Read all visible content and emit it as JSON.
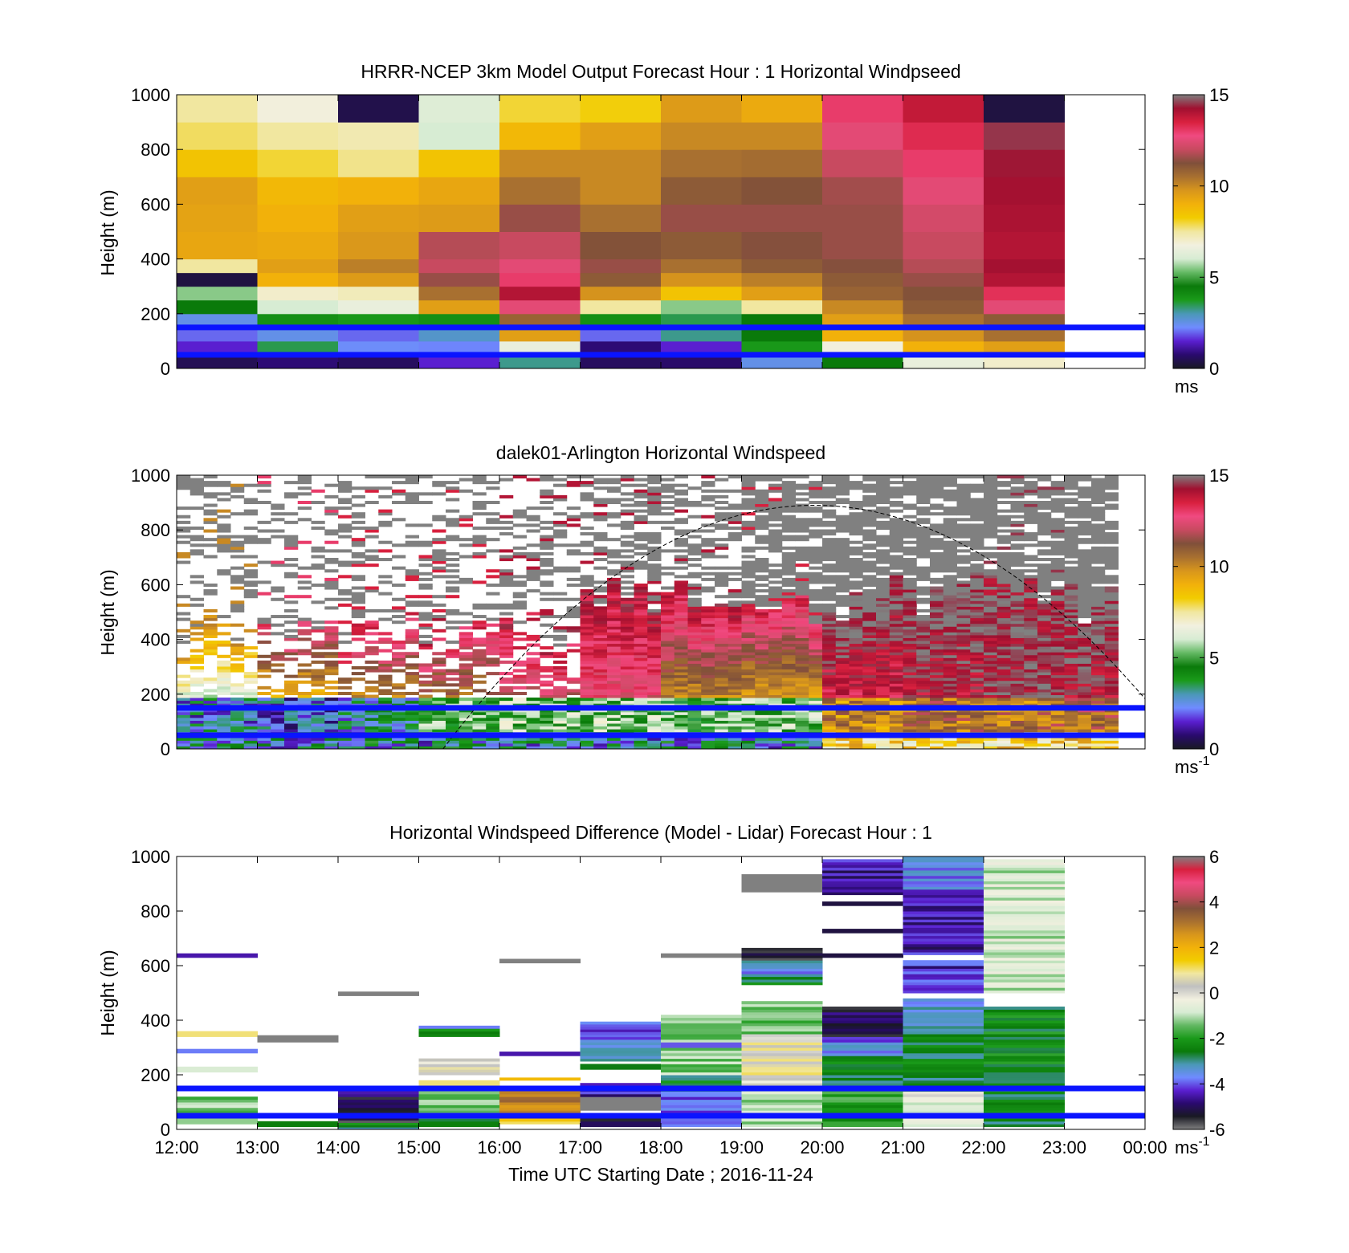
{
  "colors": {
    "wind_stops": [
      "#191923",
      "#2a0a6e",
      "#5a1fd0",
      "#6f8cff",
      "#4a98b6",
      "#1a9a1a",
      "#0a7a0a",
      "#62b862",
      "#d7ecd3",
      "#f2f0e0",
      "#f1e7a0",
      "#f2cc00",
      "#f2b10a",
      "#d8961c",
      "#a87030",
      "#80503a",
      "#c84a60",
      "#f04a80",
      "#d8203e",
      "#a01030",
      "#808080"
    ],
    "diff_stops": [
      "#808080",
      "#191923",
      "#2a0a6e",
      "#5a1fd0",
      "#6f8cff",
      "#4a98b6",
      "#0a7a0a",
      "#1a9a1a",
      "#62b862",
      "#d7ecd3",
      "#f2f0e0",
      "#c0c0c0",
      "#f1e7a0",
      "#f2cc00",
      "#f2b10a",
      "#d8961c",
      "#a87030",
      "#80503a",
      "#c84a60",
      "#f04a80",
      "#d8203e",
      "#808080"
    ],
    "reference_line": "#0a14ff"
  },
  "chart_data": [
    {
      "type": "heatmap",
      "title": "HRRR-NCEP 3km Model Output   Forecast Hour : 1 Horizontal Windpseed",
      "ylabel": "Height (m)",
      "y_ticks": [
        "0",
        "200",
        "400",
        "600",
        "800",
        "1000"
      ],
      "ylim": [
        0,
        1000
      ],
      "x_ticks_hours": [
        12,
        13,
        14,
        15,
        16,
        17,
        18,
        19,
        20,
        21,
        22,
        23,
        24
      ],
      "xlim_hours": [
        12,
        24
      ],
      "colorbar": {
        "ticks": [
          "0",
          "5",
          "10",
          "15"
        ],
        "range": [
          0,
          15
        ],
        "unit": "ms"
      },
      "reference_lines_m": [
        50,
        150
      ],
      "heights_m": [
        0,
        50,
        100,
        150,
        200,
        250,
        300,
        350,
        400,
        500,
        600,
        700,
        800,
        900,
        1000
      ],
      "columns": [
        {
          "hour": 12,
          "values": [
            0.5,
            1.5,
            2.0,
            2.5,
            4.5,
            5.5,
            0.3,
            7.5,
            9.3,
            9.4,
            9.5,
            8.5,
            7.8,
            7.5
          ]
        },
        {
          "hour": 13,
          "values": [
            0.8,
            3.5,
            2.5,
            4.0,
            6.0,
            7.0,
            9.0,
            9.5,
            9.2,
            9.0,
            8.8,
            8.0,
            7.5,
            6.8
          ]
        },
        {
          "hour": 14,
          "values": [
            0.6,
            2.3,
            2.0,
            3.8,
            6.5,
            7.2,
            9.6,
            10.2,
            9.7,
            9.5,
            9.0,
            7.6,
            7.3,
            0.4
          ]
        },
        {
          "hour": 15,
          "values": [
            1.5,
            2.2,
            2.8,
            4.0,
            9.5,
            10.5,
            11.5,
            12.0,
            11.8,
            9.6,
            9.3,
            8.5,
            6.0,
            6.2
          ]
        },
        {
          "hour": 16,
          "values": [
            3.2,
            6.5,
            9.5,
            10.8,
            12.5,
            14.0,
            13.0,
            12.5,
            12.0,
            11.5,
            10.5,
            10.0,
            8.8,
            8.0
          ]
        },
        {
          "hour": 17,
          "values": [
            0.6,
            0.8,
            2.0,
            4.0,
            7.5,
            9.8,
            11.0,
            11.5,
            11.2,
            10.5,
            10.0,
            10.0,
            9.5,
            8.2
          ]
        },
        {
          "hour": 18,
          "values": [
            0.7,
            1.5,
            3.2,
            3.5,
            5.5,
            8.5,
            9.8,
            10.5,
            11.0,
            11.5,
            11.0,
            10.5,
            10.0,
            9.6
          ]
        },
        {
          "hour": 19,
          "values": [
            2.5,
            3.8,
            4.5,
            4.5,
            7.5,
            9.5,
            10.2,
            11.0,
            11.3,
            11.5,
            11.2,
            10.6,
            10.0,
            9.2
          ]
        },
        {
          "hour": 20,
          "values": [
            4.5,
            6.8,
            9.0,
            9.5,
            10.0,
            10.8,
            11.0,
            11.3,
            11.5,
            11.5,
            11.6,
            12.0,
            12.5,
            13.0
          ]
        },
        {
          "hour": 21,
          "values": [
            6.5,
            9.0,
            9.8,
            10.5,
            11.0,
            11.2,
            11.5,
            11.8,
            12.0,
            12.2,
            12.5,
            13.0,
            13.3,
            13.8
          ]
        },
        {
          "hour": 22,
          "values": [
            7.0,
            9.5,
            10.5,
            11.0,
            12.5,
            13.2,
            14.0,
            14.2,
            14.0,
            14.1,
            14.2,
            14.3,
            14.5,
            0.3
          ]
        }
      ]
    },
    {
      "type": "heatmap",
      "title": "dalek01-Arlington  Horizontal Windspeed",
      "ylabel": "Height (m)",
      "y_ticks": [
        "0",
        "200",
        "400",
        "600",
        "800",
        "1000"
      ],
      "ylim": [
        0,
        1000
      ],
      "xlim_hours": [
        12,
        24
      ],
      "colorbar": {
        "ticks": [
          "0",
          "5",
          "10",
          "15"
        ],
        "range": [
          0,
          15
        ],
        "unit": "ms",
        "unit_exponent": "-1"
      },
      "reference_lines_m": [
        50,
        150
      ],
      "solar_curve": {
        "style": "dashed",
        "start_hour": 15.3,
        "end_hour": 24,
        "peak_hour": 19.9,
        "peak_height_m": 890
      },
      "profiles_by_hour": [
        {
          "hour": 12,
          "low_level": 2.5,
          "mid_level": 6.0,
          "upper_level": 10.0,
          "sparse": true
        },
        {
          "hour": 13,
          "low_level": 2.0,
          "mid_level": 9.0,
          "upper_level": 13.0,
          "sparse": true
        },
        {
          "hour": 14,
          "low_level": 3.0,
          "mid_level": 10.0,
          "upper_level": 13.5,
          "sparse": true
        },
        {
          "hour": 15,
          "low_level": 5.0,
          "mid_level": 10.5,
          "upper_level": 13.5,
          "sparse": true
        },
        {
          "hour": 16,
          "low_level": 5.5,
          "mid_level": 12.0,
          "upper_level": 14.0,
          "sparse": true
        },
        {
          "hour": 17,
          "low_level": 5.5,
          "mid_level": 12.5,
          "upper_level": 14.0,
          "sparse": false
        },
        {
          "hour": 18,
          "low_level": 5.0,
          "mid_level": 10.0,
          "upper_level": 14.0,
          "sparse": false
        },
        {
          "hour": 19,
          "low_level": 5.5,
          "mid_level": 9.5,
          "upper_level": 13.5,
          "sparse": false
        },
        {
          "hour": 20,
          "low_level": 10.0,
          "mid_level": 13.5,
          "upper_level": 15.0,
          "sparse": false
        },
        {
          "hour": 21,
          "low_level": 10.5,
          "mid_level": 14.0,
          "upper_level": 15.0,
          "sparse": false
        },
        {
          "hour": 22,
          "low_level": 10.5,
          "mid_level": 14.5,
          "upper_level": 14.5,
          "sparse": false
        },
        {
          "hour": 23,
          "low_level": 11.0,
          "mid_level": 14.0,
          "upper_level": 15.0,
          "sparse": false
        }
      ]
    },
    {
      "type": "heatmap",
      "title": "Horizontal Windspeed Difference (Model - Lidar) Forecast Hour : 1",
      "ylabel": "Height (m)",
      "xlabel": "Time UTC  Starting Date ; 2016-11-24",
      "y_ticks": [
        "0",
        "200",
        "400",
        "600",
        "800",
        "1000"
      ],
      "ylim": [
        0,
        1000
      ],
      "x_tick_labels": [
        "12:00",
        "13:00",
        "14:00",
        "15:00",
        "16:00",
        "17:00",
        "18:00",
        "19:00",
        "20:00",
        "21:00",
        "22:00",
        "23:00",
        "00:00"
      ],
      "xlim_hours": [
        12,
        24
      ],
      "colorbar": {
        "ticks": [
          "-6",
          "-4",
          "-2",
          "0",
          "2",
          "4",
          "6"
        ],
        "range": [
          -6,
          6
        ],
        "unit": "ms",
        "unit_exponent": "-1"
      },
      "reference_lines_m": [
        50,
        150
      ],
      "columns": [
        {
          "hour": 12,
          "segments": [
            [
              20,
              40,
              -1.2
            ],
            [
              50,
              120,
              -1.3
            ],
            [
              210,
              230,
              -0.8
            ],
            [
              280,
              295,
              -3.8
            ],
            [
              340,
              360,
              1.0
            ],
            [
              630,
              645,
              -4.5
            ]
          ]
        },
        {
          "hour": 13,
          "segments": [
            [
              10,
              30,
              -2.5
            ],
            [
              320,
              345,
              6.0
            ]
          ]
        },
        {
          "hour": 14,
          "segments": [
            [
              0,
              25,
              -2.6
            ],
            [
              25,
              80,
              -5.3
            ],
            [
              80,
              140,
              -5.0
            ],
            [
              490,
              505,
              6.0
            ]
          ]
        },
        {
          "hour": 15,
          "segments": [
            [
              10,
              50,
              -2.7
            ],
            [
              50,
              140,
              -1.2
            ],
            [
              160,
              180,
              1.0
            ],
            [
              200,
              260,
              0.3
            ],
            [
              340,
              370,
              -2.6
            ],
            [
              370,
              380,
              -3.8
            ]
          ]
        },
        {
          "hour": 16,
          "segments": [
            [
              20,
              60,
              1.5
            ],
            [
              60,
              140,
              2.8
            ],
            [
              180,
              190,
              1.8
            ],
            [
              270,
              285,
              -4.5
            ],
            [
              610,
              625,
              6.0
            ]
          ]
        },
        {
          "hour": 17,
          "segments": [
            [
              10,
              40,
              -5.0
            ],
            [
              70,
              120,
              6.0
            ],
            [
              120,
              170,
              -4.5
            ],
            [
              220,
              240,
              -2.6
            ],
            [
              250,
              330,
              -3.3
            ],
            [
              330,
              395,
              -4.0
            ]
          ]
        },
        {
          "hour": 18,
          "segments": [
            [
              10,
              140,
              -4.0
            ],
            [
              140,
              200,
              -2.5
            ],
            [
              200,
              300,
              -1.2
            ],
            [
              300,
              320,
              -4.0
            ],
            [
              320,
              420,
              -1.2
            ],
            [
              630,
              645,
              6.0
            ]
          ]
        },
        {
          "hour": 19,
          "segments": [
            [
              10,
              150,
              -1.0
            ],
            [
              150,
              200,
              0.0
            ],
            [
              200,
              350,
              0.5
            ],
            [
              350,
              470,
              -1.3
            ],
            [
              530,
              570,
              -2.6
            ],
            [
              570,
              620,
              -3.6
            ],
            [
              620,
              665,
              -5.3
            ],
            [
              870,
              935,
              6.0
            ]
          ]
        },
        {
          "hour": 20,
          "segments": [
            [
              10,
              140,
              -2.0
            ],
            [
              140,
              270,
              -2.6
            ],
            [
              270,
              340,
              -3.8
            ],
            [
              340,
              450,
              -5.2
            ],
            [
              630,
              645,
              -5.2
            ],
            [
              720,
              735,
              -5.2
            ],
            [
              820,
              835,
              -5.2
            ],
            [
              860,
              990,
              -4.5
            ]
          ]
        },
        {
          "hour": 21,
          "segments": [
            [
              10,
              140,
              -0.5
            ],
            [
              140,
              360,
              -2.6
            ],
            [
              360,
              480,
              -3.5
            ],
            [
              500,
              620,
              -4.3
            ],
            [
              640,
              880,
              -4.5
            ],
            [
              880,
              1000,
              -3.8
            ]
          ]
        },
        {
          "hour": 22,
          "segments": [
            [
              10,
              150,
              -2.7
            ],
            [
              150,
              450,
              -2.4
            ],
            [
              500,
              990,
              -0.8
            ]
          ]
        }
      ]
    }
  ]
}
